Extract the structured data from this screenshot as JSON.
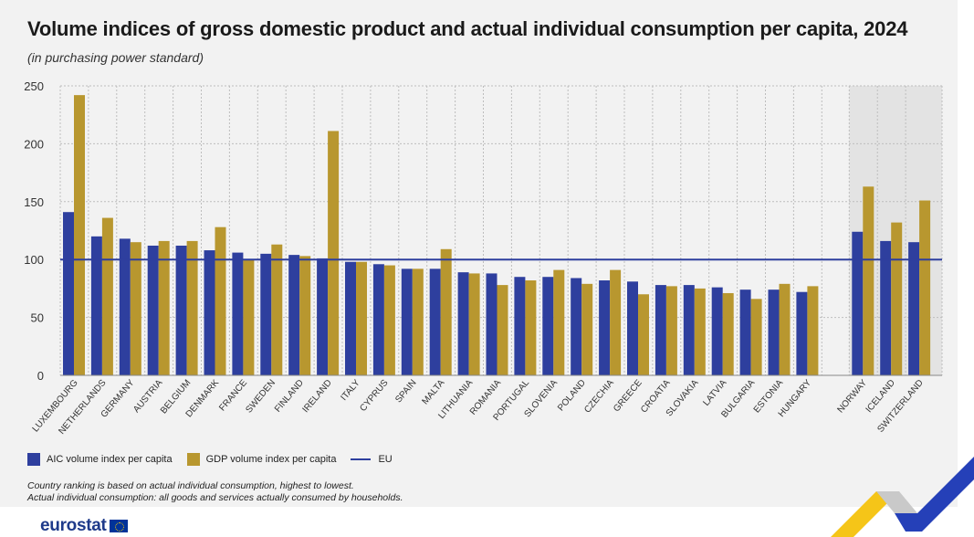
{
  "title": "Volume indices of gross domestic product and actual individual consumption per capita, 2024",
  "subtitle": "(in purchasing power standard)",
  "legend": {
    "aic": "AIC volume index per capita",
    "gdp": "GDP volume index per capita",
    "eu": "EU"
  },
  "notes": [
    "Country ranking is based on actual individual consumption, highest to lowest.",
    "Actual individual consumption: all goods and services actually consumed by households."
  ],
  "brand": "eurostat",
  "colors": {
    "aic": "#2e3f9e",
    "gdp": "#b8972f",
    "eu_line": "#2e3f9e",
    "non_eu_shade": "#e3e3e3"
  },
  "chart_data": {
    "type": "bar",
    "ylim": [
      0,
      250
    ],
    "yticks": [
      0,
      50,
      100,
      150,
      200,
      250
    ],
    "grid": true,
    "legend_position": "bottom-left",
    "eu_reference": 100,
    "categories": [
      "LUXEMBOURG",
      "NETHERLANDS",
      "GERMANY",
      "AUSTRIA",
      "BELGIUM",
      "DENMARK",
      "FRANCE",
      "SWEDEN",
      "FINLAND",
      "IRELAND",
      "ITALY",
      "CYPRUS",
      "SPAIN",
      "MALTA",
      "LITHUANIA",
      "ROMANIA",
      "PORTUGAL",
      "SLOVENIA",
      "POLAND",
      "CZECHIA",
      "GREECE",
      "CROATIA",
      "SLOVAKIA",
      "LATVIA",
      "BULGARIA",
      "ESTONIA",
      "HUNGARY",
      "NORWAY",
      "ICELAND",
      "SWITZERLAND"
    ],
    "non_eu_categories": [
      "NORWAY",
      "ICELAND",
      "SWITZERLAND"
    ],
    "series": [
      {
        "name": "AIC volume index per capita",
        "values": [
          141,
          120,
          118,
          112,
          112,
          108,
          106,
          105,
          104,
          101,
          98,
          96,
          92,
          92,
          89,
          88,
          85,
          85,
          84,
          82,
          81,
          78,
          78,
          76,
          74,
          74,
          72,
          124,
          116,
          115
        ]
      },
      {
        "name": "GDP volume index per capita",
        "values": [
          242,
          136,
          115,
          116,
          116,
          128,
          100,
          113,
          103,
          211,
          98,
          95,
          92,
          109,
          88,
          78,
          82,
          91,
          79,
          91,
          70,
          77,
          75,
          71,
          66,
          79,
          77,
          163,
          132,
          151
        ]
      }
    ]
  }
}
